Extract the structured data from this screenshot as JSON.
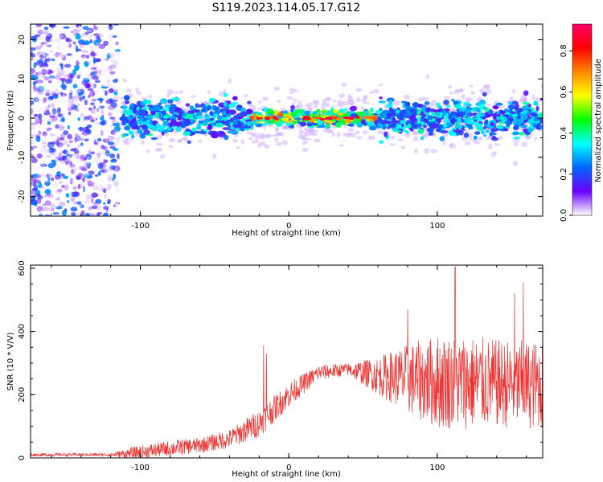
{
  "figure_title": "S119.2023.114.05.17.G12",
  "chart_data": [
    {
      "type": "heatmap",
      "title": "",
      "xlabel": "Height of straight line (km)",
      "ylabel": "Frequency (Hz)",
      "xlim": [
        -174,
        171
      ],
      "ylim": [
        -25,
        24
      ],
      "xticks": [
        -100,
        0,
        100
      ],
      "yticks": [
        -20,
        -10,
        0,
        10,
        20
      ],
      "colorbar": {
        "label": "Normalized spectral amplitude",
        "range": [
          0,
          0.93
        ],
        "ticks": [
          "0.0",
          "0.2",
          "0.4",
          "0.6",
          "0.8"
        ],
        "tick_values": [
          0,
          0.2,
          0.4,
          0.6,
          0.8
        ],
        "colors": [
          "#ffffff",
          "#6a00ff",
          "#0066ff",
          "#00ffff",
          "#00ff00",
          "#ffff00",
          "#ff8800",
          "#ff0000",
          "#ff0066"
        ]
      },
      "features": {
        "scattered_noise_region_x": [
          -174,
          -115
        ],
        "band_center_hz": 0,
        "band_halfwidth_hz": 5,
        "peak_region_x": [
          -25,
          60
        ]
      }
    },
    {
      "type": "line",
      "title": "",
      "xlabel": "Height of straight line (km)",
      "ylabel": "SNR (10 * V/V)",
      "xlim": [
        -174,
        171
      ],
      "ylim": [
        0,
        610
      ],
      "xticks": [
        -100,
        0,
        100
      ],
      "yticks": [
        0,
        200,
        400,
        600
      ],
      "line_color": "#ee3333",
      "envelope": {
        "x": [
          -174,
          -120,
          -105,
          -80,
          -60,
          -40,
          -20,
          0,
          20,
          40,
          60,
          80,
          100,
          120,
          140,
          171
        ],
        "baseline": [
          10,
          10,
          15,
          30,
          40,
          60,
          110,
          200,
          270,
          280,
          260,
          250,
          240,
          240,
          235,
          230
        ],
        "amplitude": [
          5,
          5,
          20,
          25,
          25,
          30,
          45,
          40,
          25,
          20,
          60,
          110,
          150,
          150,
          140,
          140
        ]
      },
      "spikes": [
        {
          "x": -17,
          "y": 355
        },
        {
          "x": -15,
          "y": 330
        },
        {
          "x": 112,
          "y": 605
        },
        {
          "x": 158,
          "y": 555
        },
        {
          "x": 152,
          "y": 520
        },
        {
          "x": 80,
          "y": 470
        }
      ]
    }
  ]
}
